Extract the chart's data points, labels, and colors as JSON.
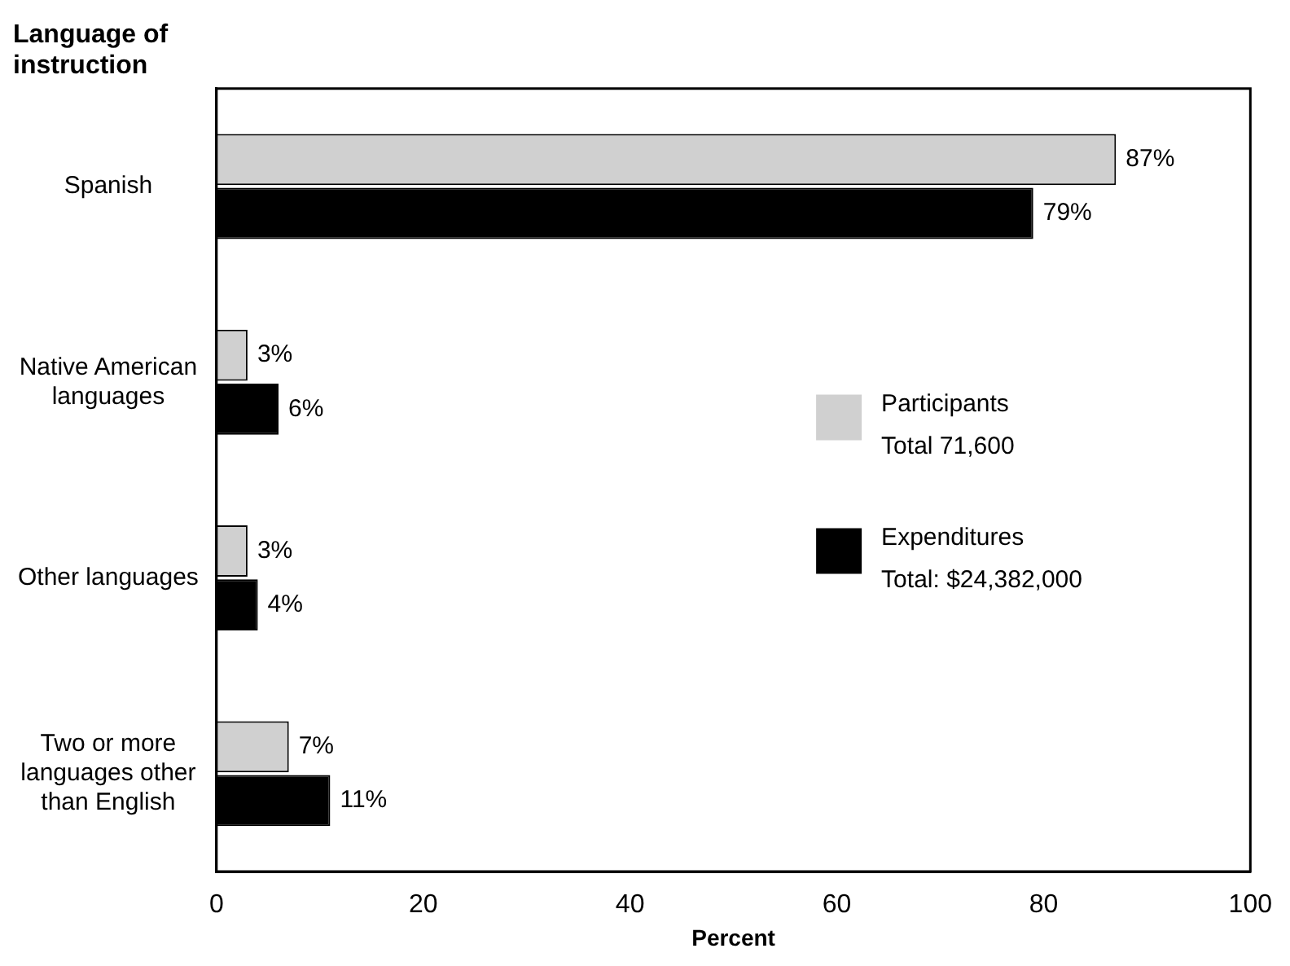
{
  "chart_data": {
    "type": "bar",
    "orientation": "horizontal",
    "title": "Language of instruction",
    "xlabel": "Percent",
    "categories": [
      "Spanish",
      "Native American languages",
      "Other languages",
      "Two or more languages other than English"
    ],
    "series": [
      {
        "name": "Participants",
        "color": "#d0d0d0",
        "values": [
          87,
          3,
          3,
          7
        ],
        "value_labels": [
          "87%",
          "3%",
          "3%",
          "7%"
        ]
      },
      {
        "name": "Expenditures",
        "color": "#000000",
        "values": [
          79,
          6,
          4,
          11
        ],
        "value_labels": [
          "79%",
          "6%",
          "4%",
          "11%"
        ]
      }
    ],
    "xlim": [
      0,
      100
    ],
    "xticks": [
      0,
      20,
      40,
      60,
      80,
      100
    ],
    "grid": false,
    "legend": "right",
    "annotations": [
      "Total 71,600",
      "Total: $24,382,000"
    ]
  }
}
